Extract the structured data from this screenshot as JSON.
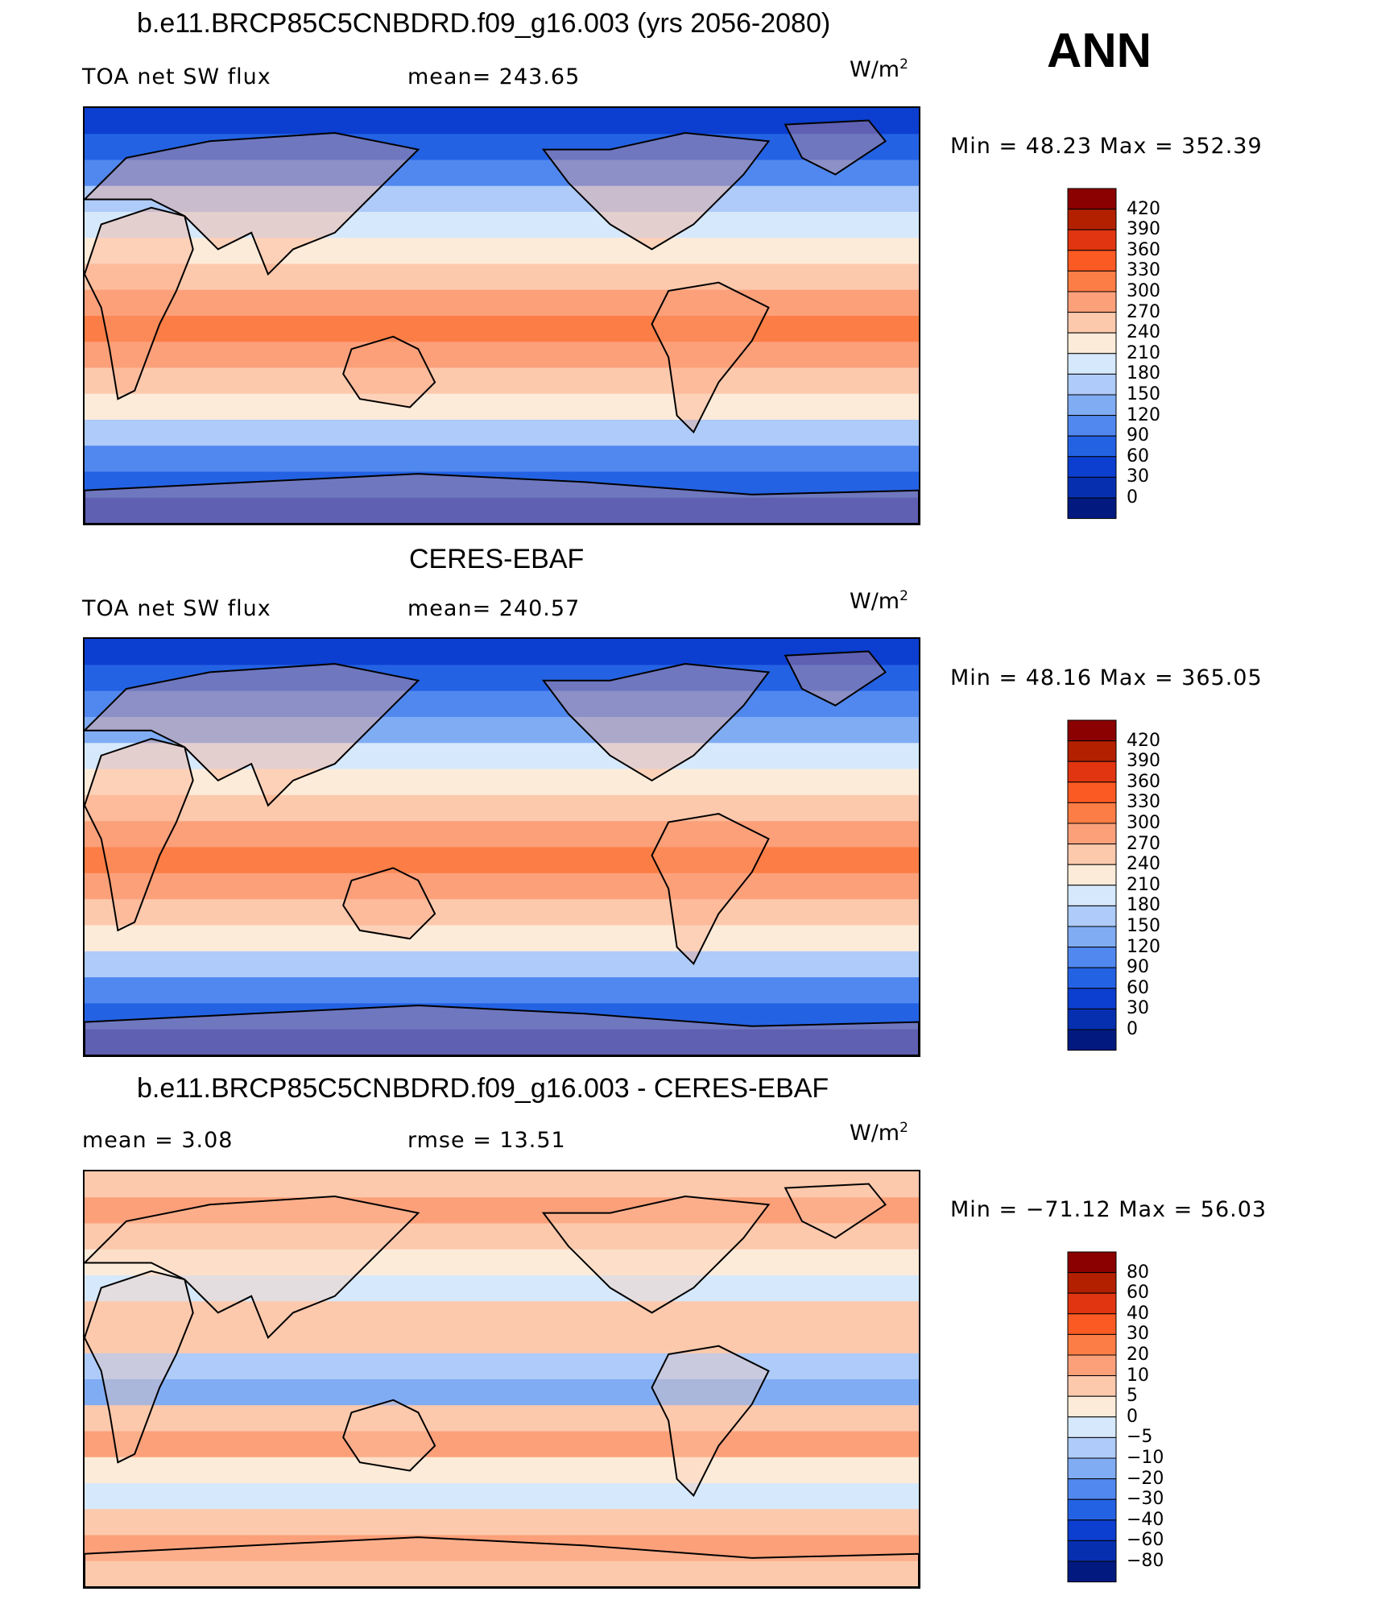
{
  "season": "ANN",
  "panels": [
    {
      "id": "model",
      "title": "b.e11.BRCP85C5CNBDRD.f09_g16.003 (yrs 2056-2080)",
      "left_label": "TOA net SW flux",
      "stat_label": "mean= 243.65",
      "units_base": "W/m",
      "units_exp": "2",
      "minmax": "Min =   48.23  Max  =  352.39",
      "colorbar": {
        "levels": [
          "420",
          "390",
          "360",
          "330",
          "300",
          "270",
          "240",
          "210",
          "180",
          "150",
          "120",
          "90",
          "60",
          "30",
          "0"
        ],
        "colors": [
          "#8b0000",
          "#b22000",
          "#e03510",
          "#fb5a22",
          "#fc7d45",
          "#fca07a",
          "#fdc9ad",
          "#fdebd9",
          "#d6e8fb",
          "#aecbf9",
          "#80acf4",
          "#5088ef",
          "#2462e4",
          "#0c3ecf",
          "#062fb0",
          "#021a80"
        ]
      }
    },
    {
      "id": "obs",
      "title": "CERES-EBAF",
      "left_label": "TOA net SW flux",
      "stat_label": "mean= 240.57",
      "units_base": "W/m",
      "units_exp": "2",
      "minmax": "Min =   48.16  Max  =  365.05",
      "colorbar": {
        "levels": [
          "420",
          "390",
          "360",
          "330",
          "300",
          "270",
          "240",
          "210",
          "180",
          "150",
          "120",
          "90",
          "60",
          "30",
          "0"
        ],
        "colors": [
          "#8b0000",
          "#b22000",
          "#e03510",
          "#fb5a22",
          "#fc7d45",
          "#fca07a",
          "#fdc9ad",
          "#fdebd9",
          "#d6e8fb",
          "#aecbf9",
          "#80acf4",
          "#5088ef",
          "#2462e4",
          "#0c3ecf",
          "#062fb0",
          "#021a80"
        ]
      }
    },
    {
      "id": "diff",
      "title": "b.e11.BRCP85C5CNBDRD.f09_g16.003 - CERES-EBAF",
      "left_label": "mean =     3.08",
      "stat_label": "rmse =    13.51",
      "units_base": "W/m",
      "units_exp": "2",
      "minmax": "Min  =  −71.12  Max  =    56.03",
      "colorbar": {
        "levels": [
          "80",
          "60",
          "40",
          "30",
          "20",
          "10",
          "5",
          "0",
          "−5",
          "−10",
          "−20",
          "−30",
          "−40",
          "−60",
          "−80"
        ],
        "colors": [
          "#8b0000",
          "#b22000",
          "#e03510",
          "#fb5a22",
          "#fc7d45",
          "#fca07a",
          "#fdc9ad",
          "#fdebd9",
          "#d6e8fb",
          "#aecbf9",
          "#80acf4",
          "#5088ef",
          "#2462e4",
          "#0c3ecf",
          "#062fb0",
          "#021a80"
        ]
      }
    }
  ],
  "chart_data": [
    {
      "type": "heatmap",
      "title": "b.e11.BRCP85C5CNBDRD.f09_g16.003 (yrs 2056-2080)",
      "variable": "TOA net SW flux",
      "units": "W/m2",
      "mean": 243.65,
      "min": 48.23,
      "max": 352.39,
      "contour_levels": [
        0,
        30,
        60,
        90,
        120,
        150,
        180,
        210,
        240,
        270,
        300,
        330,
        360,
        390,
        420
      ],
      "zonal_band_values": [
        40,
        75,
        110,
        150,
        190,
        230,
        265,
        295,
        310,
        290,
        260,
        215,
        160,
        110,
        70,
        45
      ]
    },
    {
      "type": "heatmap",
      "title": "CERES-EBAF",
      "variable": "TOA net SW flux",
      "units": "W/m2",
      "mean": 240.57,
      "min": 48.16,
      "max": 365.05,
      "contour_levels": [
        0,
        30,
        60,
        90,
        120,
        150,
        180,
        210,
        240,
        270,
        300,
        330,
        360,
        390,
        420
      ],
      "zonal_band_values": [
        40,
        70,
        105,
        145,
        185,
        225,
        260,
        290,
        315,
        295,
        265,
        220,
        165,
        115,
        75,
        48
      ]
    },
    {
      "type": "heatmap",
      "title": "b.e11.BRCP85C5CNBDRD.f09_g16.003 - CERES-EBAF",
      "units": "W/m2",
      "mean": 3.08,
      "rmse": 13.51,
      "min": -71.12,
      "max": 56.03,
      "contour_levels": [
        -80,
        -60,
        -40,
        -30,
        -20,
        -10,
        -5,
        0,
        5,
        10,
        20,
        30,
        40,
        60,
        80
      ],
      "zonal_band_values": [
        7,
        12,
        8,
        3,
        -3,
        5,
        8,
        -8,
        -12,
        6,
        10,
        4,
        -2,
        9,
        12,
        8
      ]
    }
  ]
}
